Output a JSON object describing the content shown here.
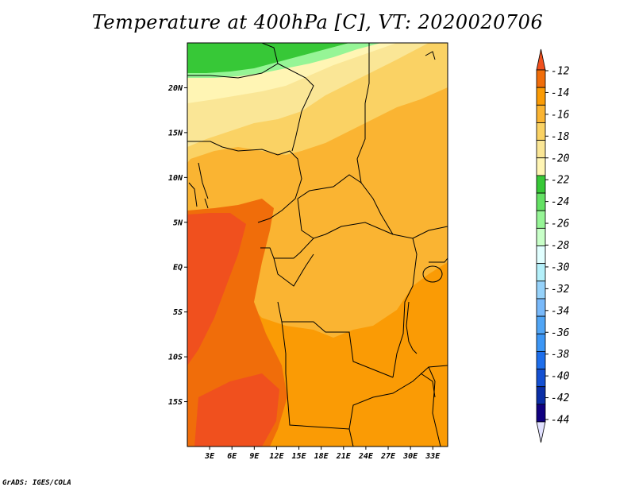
{
  "title": "Temperature at 400hPa [C], VT: 2020020706",
  "footer": "GrADS: IGES/COLA",
  "map": {
    "lon_range": [
      0,
      35
    ],
    "lat_range": [
      -20,
      25
    ],
    "lon_ticks": [
      "3E",
      "6E",
      "9E",
      "12E",
      "15E",
      "18E",
      "21E",
      "24E",
      "27E",
      "30E",
      "33E"
    ],
    "lat_ticks": [
      "20N",
      "15N",
      "10N",
      "5N",
      "EQ",
      "5S",
      "10S",
      "15S"
    ]
  },
  "colorbar": {
    "labels": [
      "-12",
      "-14",
      "-16",
      "-18",
      "-20",
      "-22",
      "-24",
      "-26",
      "-28",
      "-30",
      "-32",
      "-34",
      "-36",
      "-38",
      "-40",
      "-42",
      "-44"
    ],
    "colors": [
      "#f0501e",
      "#f06d0a",
      "#fa9b05",
      "#fab432",
      "#fad264",
      "#fae696",
      "#fff5b4",
      "#37c837",
      "#64e164",
      "#96f596",
      "#c8ffc8",
      "#e1ffff",
      "#b4f0fa",
      "#96d2fa",
      "#78b9fa",
      "#50a5f5",
      "#3c96f5",
      "#1e6eeb",
      "#1450d2",
      "#0a2ea6",
      "#100080",
      "#e1e1ff"
    ]
  }
}
